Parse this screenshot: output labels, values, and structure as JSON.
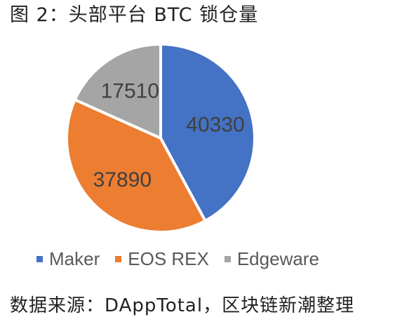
{
  "title": "图 2：头部平台 BTC 锁仓量",
  "source": "数据来源：DAppTotal，区块链新潮整理",
  "chart_data": {
    "type": "pie",
    "categories": [
      "Maker",
      "EOS REX",
      "Edgeware"
    ],
    "values": [
      40330,
      37890,
      17510
    ],
    "colors": [
      "#4472C4",
      "#ED7D31",
      "#A5A5A5"
    ],
    "legend_position": "bottom",
    "start": "12 o'clock",
    "direction": "clockwise"
  }
}
